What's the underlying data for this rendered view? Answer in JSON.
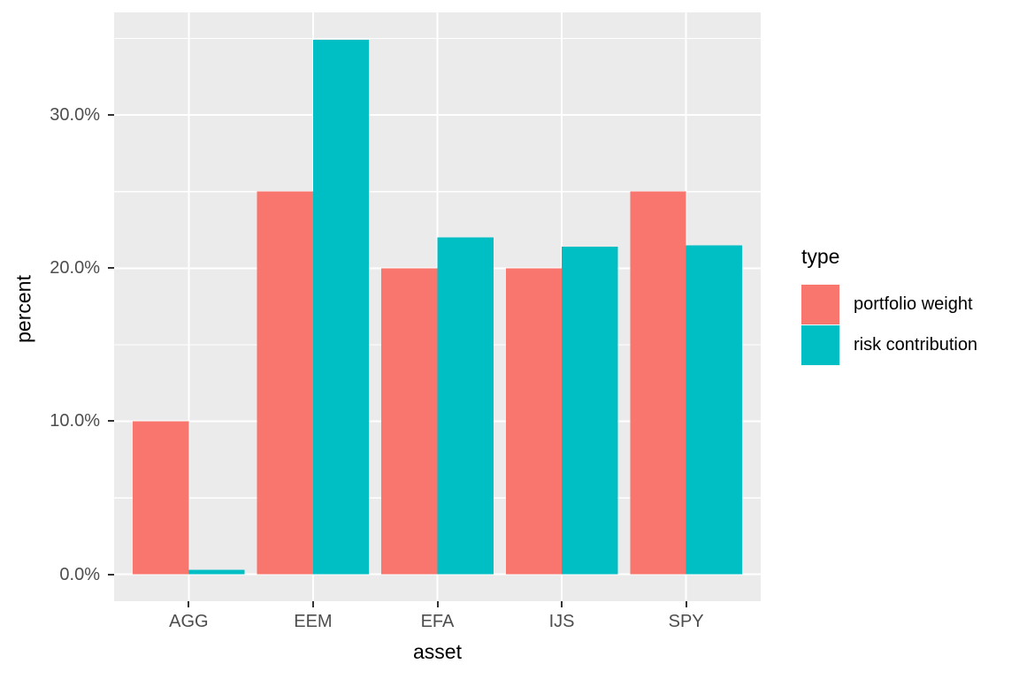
{
  "figure": {
    "background": "#FFFFFF",
    "panel_background": "#EBEBEB",
    "gridline_color": "#FFFFFF",
    "tick_mark_color": "#333333",
    "tick_label_color": "#4D4D4D",
    "title_color": "#000000"
  },
  "chart_data": {
    "type": "bar",
    "title": "",
    "xlabel": "asset",
    "ylabel": "percent",
    "categories": [
      "AGG",
      "EEM",
      "EFA",
      "IJS",
      "SPY"
    ],
    "series": [
      {
        "name": "portfolio weight",
        "color": "#F8766D",
        "values": [
          10.0,
          25.0,
          20.0,
          20.0,
          25.0
        ]
      },
      {
        "name": "risk contribution",
        "color": "#00BFC4",
        "values": [
          0.3,
          34.9,
          22.0,
          21.4,
          21.5
        ]
      }
    ],
    "y_ticks": [
      {
        "value": 0,
        "label": "0.0%"
      },
      {
        "value": 10,
        "label": "10.0%"
      },
      {
        "value": 20,
        "label": "20.0%"
      },
      {
        "value": 30,
        "label": "30.0%"
      }
    ],
    "y_minor": [
      5,
      15,
      25,
      35
    ],
    "ylim": [
      -1.75,
      36.7
    ],
    "grid": true,
    "legend": {
      "title": "type",
      "position": "right"
    }
  }
}
